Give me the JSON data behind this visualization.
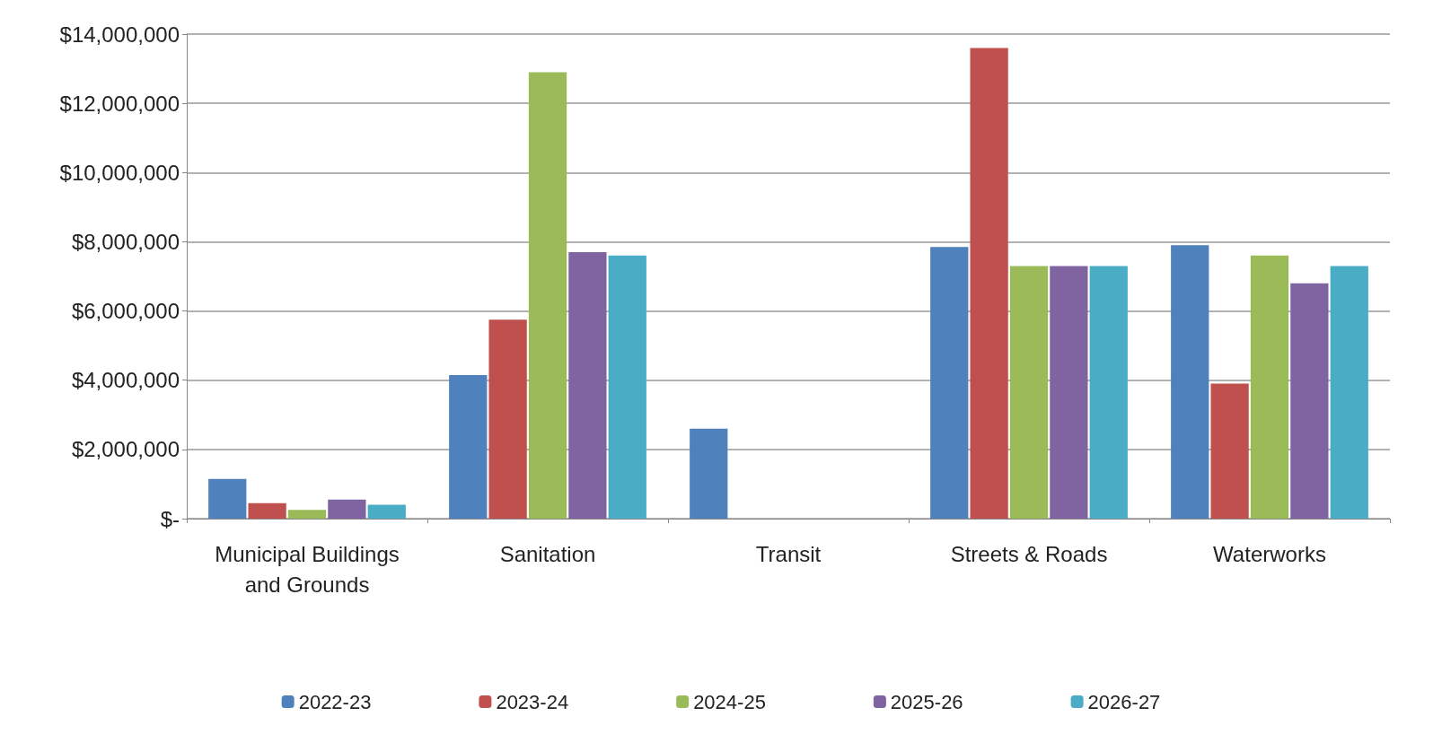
{
  "chart_data": {
    "type": "bar",
    "categories": [
      "Municipal Buildings\nand Grounds",
      "Sanitation",
      "Transit",
      "Streets & Roads",
      "Waterworks"
    ],
    "series": [
      {
        "name": "2022-23",
        "color": "#4f81bd",
        "values": [
          1150000,
          4150000,
          2600000,
          7850000,
          7900000
        ]
      },
      {
        "name": "2023-24",
        "color": "#c0504d",
        "values": [
          450000,
          5750000,
          0,
          13600000,
          3900000
        ]
      },
      {
        "name": "2024-25",
        "color": "#9bbb59",
        "values": [
          250000,
          12900000,
          0,
          7300000,
          7600000
        ]
      },
      {
        "name": "2025-26",
        "color": "#8064a2",
        "values": [
          550000,
          7700000,
          0,
          7300000,
          6800000
        ]
      },
      {
        "name": "2026-27",
        "color": "#4bacc6",
        "values": [
          400000,
          7600000,
          0,
          7300000,
          7300000
        ]
      }
    ],
    "ylim": [
      0,
      14000000
    ],
    "yticks": [
      {
        "value": 0,
        "label": "$-"
      },
      {
        "value": 2000000,
        "label": "$2,000,000"
      },
      {
        "value": 4000000,
        "label": "$4,000,000"
      },
      {
        "value": 6000000,
        "label": "$6,000,000"
      },
      {
        "value": 8000000,
        "label": "$8,000,000"
      },
      {
        "value": 10000000,
        "label": "$10,000,000"
      },
      {
        "value": 12000000,
        "label": "$12,000,000"
      },
      {
        "value": 14000000,
        "label": "$14,000,000"
      }
    ],
    "grid": "y",
    "legend": "bottom"
  }
}
